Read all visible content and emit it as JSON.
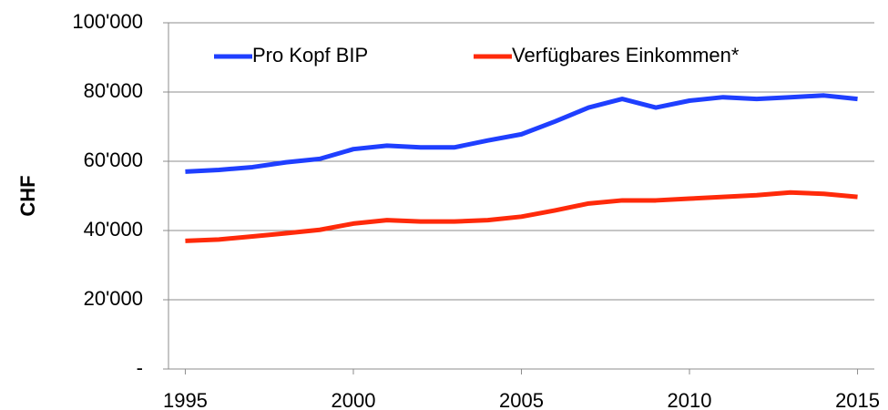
{
  "chart_data": {
    "type": "line",
    "y_label": "CHF",
    "x": [
      1995,
      1996,
      1997,
      1998,
      1999,
      2000,
      2001,
      2002,
      2003,
      2004,
      2005,
      2006,
      2007,
      2008,
      2009,
      2010,
      2011,
      2012,
      2013,
      2014,
      2015
    ],
    "series": [
      {
        "name": "Pro Kopf BIP",
        "color": "#1f3fff",
        "values": [
          57000,
          57500,
          58300,
          59700,
          60700,
          63500,
          64500,
          64000,
          64000,
          66000,
          67800,
          71500,
          75500,
          78000,
          75500,
          77500,
          78500,
          78000,
          78500,
          79000,
          78000
        ]
      },
      {
        "name": "Verfügbares Einkommen*",
        "color": "#ff2a0a",
        "values": [
          37000,
          37400,
          38300,
          39200,
          40200,
          42000,
          43000,
          42600,
          42600,
          43000,
          44000,
          45800,
          47800,
          48700,
          48700,
          49200,
          49700,
          50200,
          51000,
          50600,
          49700
        ]
      }
    ],
    "xlim": [
      1994.5,
      2015.5
    ],
    "xticks": [
      1995,
      2000,
      2005,
      2010,
      2015
    ],
    "ylim": [
      0,
      100000
    ],
    "yticks": [
      {
        "value": 0,
        "label": "-"
      },
      {
        "value": 20000,
        "label": "20'000"
      },
      {
        "value": 40000,
        "label": "40'000"
      },
      {
        "value": 60000,
        "label": "60'000"
      },
      {
        "value": 80000,
        "label": "80'000"
      },
      {
        "value": 100000,
        "label": "100'000"
      }
    ],
    "grid": true,
    "legend": "top"
  }
}
